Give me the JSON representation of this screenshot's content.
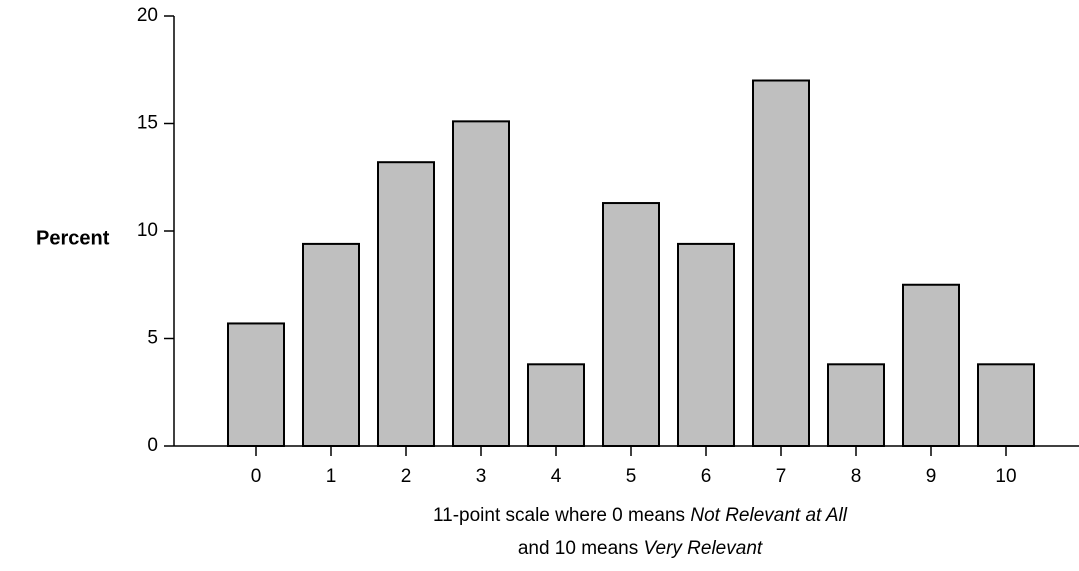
{
  "chart_data": {
    "type": "bar",
    "categories": [
      "0",
      "1",
      "2",
      "3",
      "4",
      "5",
      "6",
      "7",
      "8",
      "9",
      "10"
    ],
    "values": [
      5.7,
      9.4,
      13.2,
      15.1,
      3.8,
      11.3,
      9.4,
      17.0,
      3.8,
      7.5,
      3.8
    ],
    "ylabel": "Percent",
    "xlabel": {
      "line1_prefix": "11-point scale where  0 means ",
      "line1_italic": "Not Relevant at All",
      "line2_prefix": "and 10 means ",
      "line2_italic": "Very Relevant"
    },
    "ylim": [
      0,
      20
    ],
    "yticks": [
      "0",
      "5",
      "10",
      "15",
      "20"
    ],
    "grid": false,
    "bar_color": "#bfbfbf",
    "edge_color": "#000000"
  }
}
